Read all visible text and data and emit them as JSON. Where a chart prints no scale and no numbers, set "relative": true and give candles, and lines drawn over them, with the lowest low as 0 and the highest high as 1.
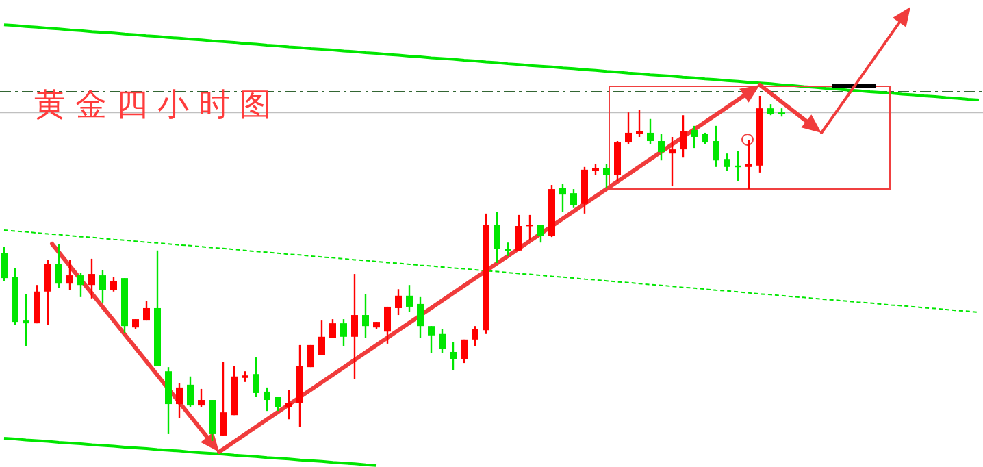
{
  "chart_data": {
    "type": "candlestick",
    "relative": true,
    "title": "黄金四小时图",
    "categories": [
      null,
      null,
      null,
      null,
      null,
      null,
      null,
      null,
      null,
      null,
      null,
      null,
      null,
      null,
      null,
      null,
      null,
      null,
      null,
      null,
      null,
      null,
      null,
      null,
      null,
      null,
      null,
      null,
      null,
      null,
      null,
      null,
      null,
      null,
      null,
      null,
      null,
      null,
      null,
      null,
      null,
      null,
      null,
      null,
      null,
      null,
      null,
      null,
      null,
      null,
      null,
      null,
      null,
      null,
      null,
      null,
      null,
      null,
      null,
      null,
      null,
      null,
      null,
      null,
      null,
      null,
      null,
      null,
      null,
      null,
      null,
      null,
      null,
      null,
      null,
      null,
      null,
      null,
      null,
      null,
      null,
      null,
      null,
      null,
      null,
      null,
      null,
      null,
      null,
      null
    ],
    "ohlc": [
      [
        0.544,
        0.563,
        0.464,
        0.472
      ],
      [
        0.476,
        0.5,
        0.337,
        0.345
      ],
      [
        0.349,
        0.425,
        0.274,
        0.341
      ],
      [
        0.341,
        0.452,
        0.341,
        0.433
      ],
      [
        0.433,
        0.524,
        0.337,
        0.512
      ],
      [
        0.512,
        0.571,
        0.444,
        0.456
      ],
      [
        0.456,
        0.524,
        0.437,
        0.48
      ],
      [
        0.48,
        0.488,
        0.417,
        0.452
      ],
      [
        0.452,
        0.528,
        0.413,
        0.484
      ],
      [
        0.48,
        0.496,
        0.401,
        0.437
      ],
      [
        0.437,
        0.476,
        0.433,
        0.464
      ],
      [
        0.472,
        0.472,
        0.313,
        0.333
      ],
      [
        0.329,
        0.353,
        0.325,
        0.353
      ],
      [
        0.349,
        0.405,
        0.349,
        0.385
      ],
      [
        0.385,
        0.552,
        0.218,
        0.218
      ],
      [
        0.202,
        0.214,
        0.02,
        0.107
      ],
      [
        0.107,
        0.167,
        0.067,
        0.155
      ],
      [
        0.163,
        0.187,
        0.099,
        0.103
      ],
      [
        0.103,
        0.151,
        0.099,
        0.119
      ],
      [
        0.119,
        0.119,
        0.0,
        0.02
      ],
      [
        0.016,
        0.23,
        0.016,
        0.083
      ],
      [
        0.075,
        0.218,
        0.075,
        0.187
      ],
      [
        0.183,
        0.202,
        0.171,
        0.19
      ],
      [
        0.194,
        0.242,
        0.127,
        0.139
      ],
      [
        0.143,
        0.155,
        0.087,
        0.119
      ],
      [
        0.127,
        0.127,
        0.087,
        0.099
      ],
      [
        0.099,
        0.147,
        0.063,
        0.111
      ],
      [
        0.111,
        0.278,
        0.04,
        0.218
      ],
      [
        0.214,
        0.278,
        0.214,
        0.278
      ],
      [
        0.25,
        0.349,
        0.25,
        0.302
      ],
      [
        0.298,
        0.353,
        0.298,
        0.341
      ],
      [
        0.341,
        0.353,
        0.274,
        0.302
      ],
      [
        0.302,
        0.484,
        0.179,
        0.365
      ],
      [
        0.365,
        0.425,
        0.298,
        0.333
      ],
      [
        0.329,
        0.345,
        0.325,
        0.345
      ],
      [
        0.317,
        0.389,
        0.282,
        0.389
      ],
      [
        0.385,
        0.44,
        0.365,
        0.421
      ],
      [
        0.421,
        0.452,
        0.373,
        0.389
      ],
      [
        0.397,
        0.417,
        0.298,
        0.333
      ],
      [
        0.333,
        0.333,
        0.254,
        0.306
      ],
      [
        0.31,
        0.325,
        0.254,
        0.266
      ],
      [
        0.258,
        0.286,
        0.206,
        0.238
      ],
      [
        0.238,
        0.294,
        0.226,
        0.294
      ],
      [
        0.294,
        0.333,
        0.274,
        0.325
      ],
      [
        0.321,
        0.659,
        0.31,
        0.627
      ],
      [
        0.627,
        0.663,
        0.516,
        0.556
      ],
      [
        0.556,
        0.575,
        0.536,
        0.552
      ],
      [
        0.552,
        0.655,
        0.552,
        0.623
      ],
      [
        0.623,
        0.655,
        0.583,
        0.627
      ],
      [
        0.627,
        0.627,
        0.575,
        0.595
      ],
      [
        0.595,
        0.742,
        0.591,
        0.73
      ],
      [
        0.734,
        0.746,
        0.663,
        0.714
      ],
      [
        0.718,
        0.73,
        0.675,
        0.683
      ],
      [
        0.687,
        0.794,
        0.659,
        0.786
      ],
      [
        0.782,
        0.802,
        0.77,
        0.79
      ],
      [
        0.79,
        0.802,
        0.734,
        0.77
      ],
      [
        0.77,
        0.869,
        0.754,
        0.865
      ],
      [
        0.865,
        0.952,
        0.861,
        0.893
      ],
      [
        0.889,
        0.96,
        0.881,
        0.897
      ],
      [
        0.893,
        0.933,
        0.861,
        0.869
      ],
      [
        0.869,
        0.889,
        0.813,
        0.837
      ],
      [
        0.833,
        0.881,
        0.738,
        0.845
      ],
      [
        0.845,
        0.944,
        0.821,
        0.897
      ],
      [
        0.901,
        0.913,
        0.849,
        0.881
      ],
      [
        0.889,
        0.893,
        0.861,
        0.865
      ],
      [
        0.869,
        0.913,
        0.794,
        0.813
      ],
      [
        0.817,
        0.833,
        0.782,
        0.794
      ],
      [
        0.798,
        0.841,
        0.754,
        0.794
      ],
      [
        0.794,
        0.873,
        0.73,
        0.802
      ],
      [
        0.798,
        1.0,
        0.778,
        0.964
      ],
      [
        0.964,
        0.976,
        0.944,
        0.948
      ],
      [
        0.952,
        0.964,
        0.94,
        0.948
      ],
      null,
      null,
      null,
      null,
      null,
      null,
      null,
      null,
      null,
      null,
      null,
      null,
      null,
      null,
      null,
      null,
      null,
      null
    ],
    "colors": [
      "#00e600",
      "#00e600",
      "#00e600",
      "#ff0000",
      "#ff0000",
      "#00e600",
      "#ff0000",
      "#00e600",
      "#ff0000",
      "#00e600",
      "#ff0000",
      "#00e600",
      "#ff0000",
      "#ff0000",
      "#00e600",
      "#00e600",
      "#ff0000",
      "#00e600",
      "#ff0000",
      "#00e600",
      "#ff0000",
      "#ff0000",
      "#ff0000",
      "#00e600",
      "#00e600",
      "#00e600",
      "#ff0000",
      "#ff0000",
      "#ff0000",
      "#ff0000",
      "#ff0000",
      "#00e600",
      "#ff0000",
      "#00e600",
      "#ff0000",
      "#ff0000",
      "#ff0000",
      "#00e600",
      "#00e600",
      "#00e600",
      "#00e600",
      "#00e600",
      "#ff0000",
      "#ff0000",
      "#ff0000",
      "#00e600",
      "#00e600",
      "#ff0000",
      "#ff0000",
      "#00e600",
      "#ff0000",
      "#00e600",
      "#00e600",
      "#ff0000",
      "#ff0000",
      "#00e600",
      "#ff0000",
      "#ff0000",
      "#ff0000",
      "#00e600",
      "#00e600",
      "#ff0000",
      "#ff0000",
      "#00e600",
      "#00e600",
      "#00e600",
      "#00e600",
      "#00e600",
      "#ff0000",
      "#ff0000",
      "#00e600",
      "#00e600",
      null,
      null,
      null,
      null,
      null,
      null,
      null,
      null,
      null,
      null,
      null,
      null,
      null,
      null,
      null,
      null,
      null,
      null
    ],
    "series": [
      {
        "type": "line",
        "color": "#00e600",
        "values": [
          1.206,
          1.204,
          1.201,
          1.199,
          1.196,
          1.194,
          1.191,
          1.189,
          1.186,
          1.184,
          1.182,
          1.179,
          1.177,
          1.174,
          1.172,
          1.169,
          1.167,
          1.164,
          1.162,
          1.159,
          1.157,
          1.155,
          1.152,
          1.15,
          1.147,
          1.145,
          1.142,
          1.14,
          1.137,
          1.135,
          1.133,
          1.13,
          1.128,
          1.125,
          1.123,
          1.12,
          1.118,
          1.115,
          1.113,
          1.11,
          1.108,
          1.106,
          1.103,
          1.101,
          1.098,
          1.096,
          1.093,
          1.091,
          1.088,
          1.086,
          1.084,
          1.081,
          1.079,
          1.076,
          1.074,
          1.071,
          1.069,
          1.066,
          1.064,
          1.061,
          1.059,
          1.057,
          1.054,
          1.052,
          1.049,
          1.047,
          1.044,
          1.042,
          1.039,
          1.037,
          1.035,
          1.032,
          1.03,
          1.027,
          1.025,
          1.022,
          1.02,
          1.017,
          1.015,
          1.012,
          1.01,
          1.008,
          1.005,
          1.003,
          1.0,
          0.998,
          0.995,
          0.993,
          0.99,
          0.988
        ]
      },
      {
        "type": "line",
        "color": "#00e600",
        "line_style": "dashed",
        "values": [
          0.611,
          0.608,
          0.606,
          0.603,
          0.6,
          0.598,
          0.595,
          0.592,
          0.59,
          0.587,
          0.584,
          0.582,
          0.579,
          0.576,
          0.574,
          0.571,
          0.568,
          0.566,
          0.563,
          0.56,
          0.558,
          0.555,
          0.552,
          0.549,
          0.547,
          0.544,
          0.541,
          0.539,
          0.536,
          0.533,
          0.531,
          0.528,
          0.525,
          0.523,
          0.52,
          0.517,
          0.515,
          0.512,
          0.509,
          0.507,
          0.504,
          0.501,
          0.499,
          0.496,
          0.493,
          0.491,
          0.488,
          0.485,
          0.483,
          0.48,
          0.477,
          0.475,
          0.472,
          0.469,
          0.467,
          0.464,
          0.461,
          0.459,
          0.456,
          0.453,
          0.451,
          0.448,
          0.445,
          0.443,
          0.44,
          0.437,
          0.435,
          0.432,
          0.429,
          0.426,
          0.424,
          0.421,
          0.418,
          0.416,
          0.413,
          0.41,
          0.408,
          0.405,
          0.402,
          0.4,
          0.397,
          0.394,
          0.392,
          0.389,
          0.386,
          0.384,
          0.381,
          0.378,
          0.376,
          0.373
        ]
      },
      {
        "type": "line",
        "color": "#00e600",
        "values": [
          0.008,
          0.006,
          0.003,
          0.001,
          -0.001,
          -0.004,
          -0.006,
          -0.008,
          -0.011,
          -0.013,
          -0.015,
          -0.018,
          -0.02,
          -0.022,
          -0.025,
          -0.027,
          -0.029,
          -0.032,
          -0.034,
          -0.036,
          -0.038,
          -0.041,
          -0.043,
          -0.045,
          -0.048,
          -0.05,
          -0.052,
          -0.055,
          -0.057,
          -0.059,
          -0.062,
          -0.064,
          -0.066,
          -0.069,
          -0.071,
          null,
          null,
          null,
          null,
          null,
          null,
          null,
          null,
          null,
          null,
          null,
          null,
          null,
          null,
          null,
          null,
          null,
          null,
          null,
          null,
          null,
          null,
          null,
          null,
          null,
          null,
          null,
          null,
          null,
          null,
          null,
          null,
          null,
          null,
          null,
          null,
          null,
          null,
          null,
          null,
          null,
          null,
          null,
          null,
          null,
          null,
          null,
          null,
          null,
          null,
          null,
          null,
          null,
          null,
          null
        ]
      }
    ],
    "ref_lines": [
      {
        "axis": "y",
        "value": 0.952,
        "color": "#c0c0c0",
        "line_style": "solid"
      },
      {
        "axis": "y",
        "value": 1.012,
        "color": "#336633",
        "line_style": "dashed"
      }
    ]
  }
}
